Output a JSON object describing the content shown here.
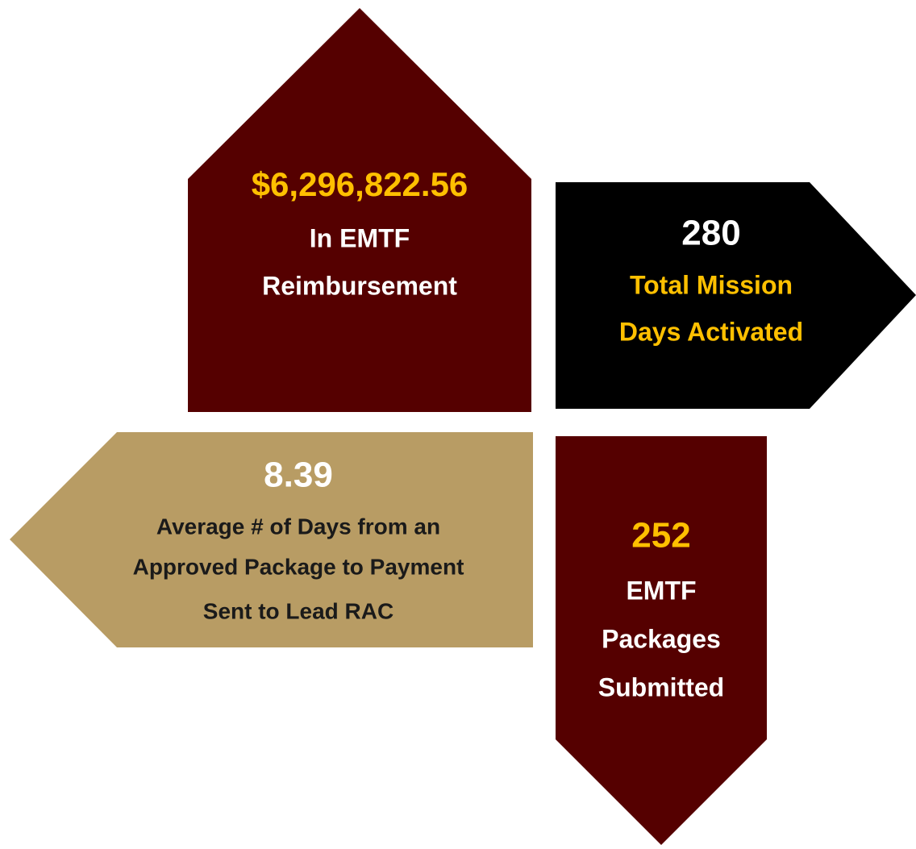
{
  "cards": [
    {
      "value": "$6,296,822.56",
      "lines": [
        "In EMTF",
        "Reimbursement"
      ]
    },
    {
      "value": "280",
      "lines": [
        "Total Mission",
        "Days Activated"
      ]
    },
    {
      "value": "8.39",
      "lines": [
        "Average # of Days from an",
        "Approved Package to Payment",
        "Sent to Lead RAC"
      ]
    },
    {
      "value": "252",
      "lines": [
        "EMTF",
        "Packages",
        "Submitted"
      ]
    }
  ]
}
